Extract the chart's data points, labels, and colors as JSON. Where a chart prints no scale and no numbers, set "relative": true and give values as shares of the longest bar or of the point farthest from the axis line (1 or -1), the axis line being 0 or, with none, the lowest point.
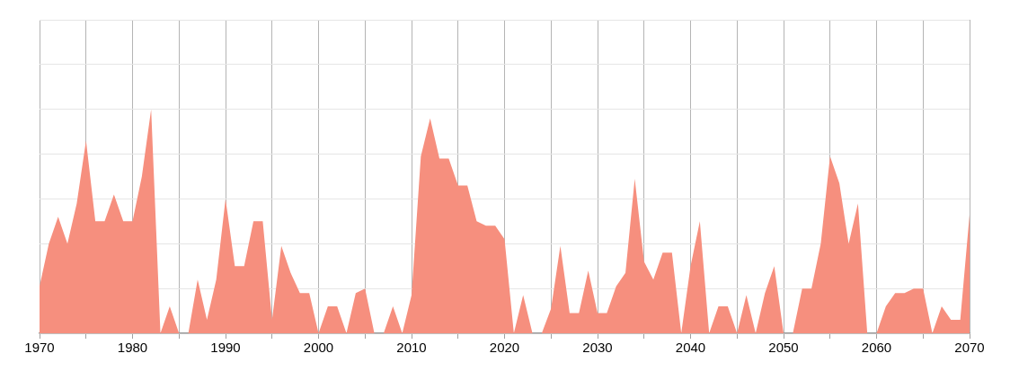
{
  "chart_data": {
    "type": "area",
    "relative": true,
    "color": "#f68f7e",
    "grid": true,
    "x": [
      1970,
      1971,
      1972,
      1973,
      1974,
      1975,
      1976,
      1977,
      1978,
      1979,
      1980,
      1981,
      1982,
      1983,
      1984,
      1985,
      1986,
      1987,
      1988,
      1989,
      1990,
      1991,
      1992,
      1993,
      1994,
      1995,
      1996,
      1997,
      1998,
      1999,
      2000,
      2001,
      2002,
      2003,
      2004,
      2005,
      2006,
      2007,
      2008,
      2009,
      2010,
      2011,
      2012,
      2013,
      2014,
      2015,
      2016,
      2017,
      2018,
      2019,
      2020,
      2021,
      2022,
      2023,
      2024,
      2025,
      2026,
      2027,
      2028,
      2029,
      2030,
      2031,
      2032,
      2033,
      2034,
      2035,
      2036,
      2037,
      2038,
      2039,
      2040,
      2041,
      2042,
      2043,
      2044,
      2045,
      2046,
      2047,
      2048,
      2049,
      2050,
      2051,
      2052,
      2053,
      2054,
      2055,
      2056,
      2057,
      2058,
      2059,
      2060,
      2061,
      2062,
      2063,
      2064,
      2065,
      2066,
      2067,
      2068,
      2069,
      2070
    ],
    "values": [
      0.21,
      0.4,
      0.52,
      0.4,
      0.58,
      0.86,
      0.5,
      0.5,
      0.62,
      0.5,
      0.5,
      0.7,
      1,
      0,
      0.12,
      0,
      0,
      0.24,
      0.06,
      0.24,
      0.6,
      0.3,
      0.3,
      0.5,
      0.5,
      0.06,
      0.39,
      0.27,
      0.18,
      0.18,
      0,
      0.12,
      0.12,
      0,
      0.18,
      0.2,
      0,
      0,
      0.12,
      0,
      0.17,
      0.79,
      0.96,
      0.78,
      0.78,
      0.66,
      0.66,
      0.5,
      0.48,
      0.48,
      0.42,
      0,
      0.17,
      0,
      0,
      0.11,
      0.39,
      0.09,
      0.09,
      0.28,
      0.09,
      0.09,
      0.21,
      0.27,
      0.69,
      0.32,
      0.24,
      0.36,
      0.36,
      0,
      0.3,
      0.5,
      0,
      0.12,
      0.12,
      0,
      0.17,
      0,
      0.18,
      0.3,
      0,
      0,
      0.2,
      0.2,
      0.4,
      0.79,
      0.67,
      0.4,
      0.58,
      0,
      0,
      0.12,
      0.18,
      0.18,
      0.2,
      0.2,
      0,
      0.12,
      0.06,
      0.06,
      0.53
    ],
    "xlim": [
      1970,
      2070
    ],
    "xticks": [
      1970,
      {
        "value": 1975,
        "label": null
      },
      1980,
      {
        "value": 1985,
        "label": null
      },
      1990,
      {
        "value": 1995,
        "label": null
      },
      2000,
      {
        "value": 2005,
        "label": null
      },
      2010,
      {
        "value": 2015,
        "label": null
      },
      2020,
      {
        "value": 2025,
        "label": null
      },
      2030,
      {
        "value": 2035,
        "label": null
      },
      2040,
      {
        "value": 2045,
        "label": null
      },
      2050,
      {
        "value": 2055,
        "label": null
      },
      2060,
      {
        "value": 2065,
        "label": null
      },
      2070
    ]
  }
}
